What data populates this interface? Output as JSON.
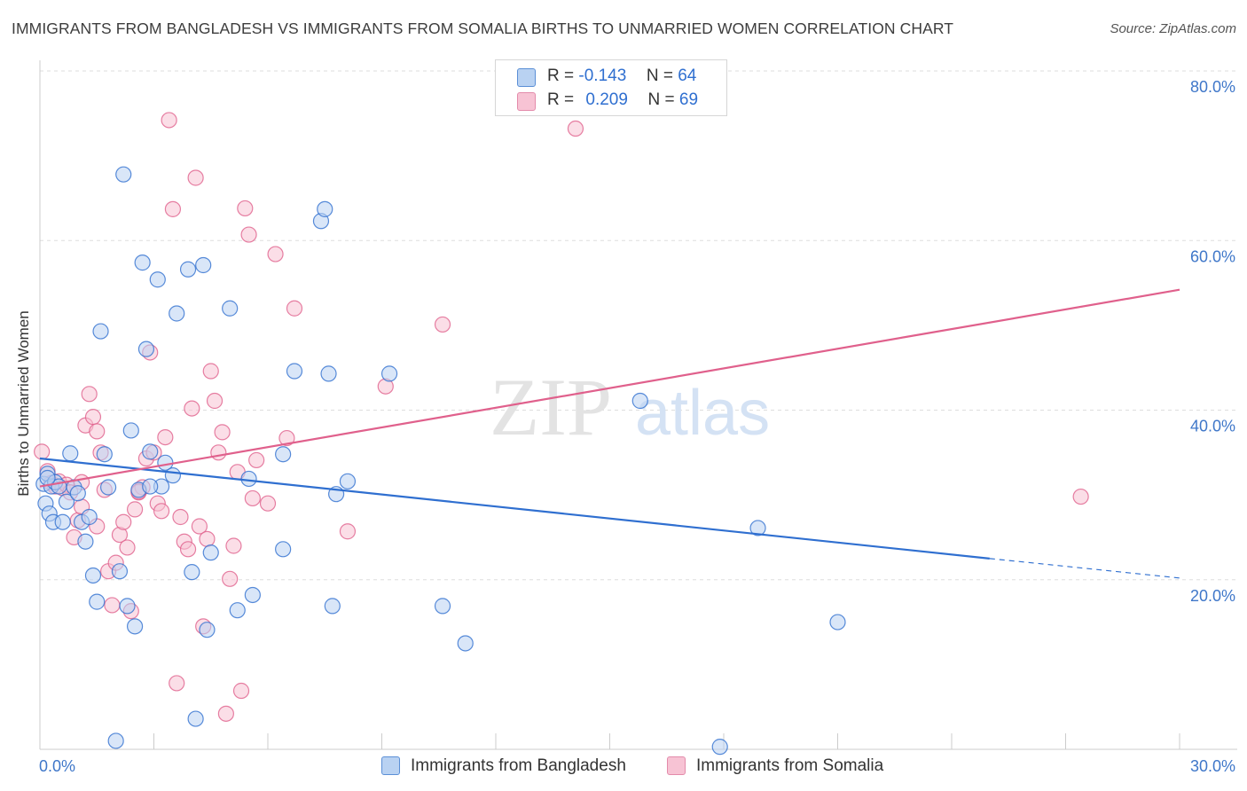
{
  "title": "IMMIGRANTS FROM BANGLADESH VS IMMIGRANTS FROM SOMALIA BIRTHS TO UNMARRIED WOMEN CORRELATION CHART",
  "source": "Source: ZipAtlas.com",
  "watermark": {
    "zip": "ZIP",
    "atlas": "atlas"
  },
  "colors": {
    "blue": "#2f6fd0",
    "pink": "#e0608c",
    "blue_fill": "#b9d2f2",
    "pink_fill": "#f7c3d4",
    "grid": "#dddddd",
    "axis_text": "#3f77c9"
  },
  "legend": {
    "rows": [
      {
        "r_label": "R =",
        "r_value": "-0.143",
        "n_label": "N =",
        "n_value": "64"
      },
      {
        "r_label": "R =",
        "r_value": "0.209",
        "n_label": "N =",
        "n_value": "69"
      }
    ]
  },
  "chart_data": {
    "type": "scatter",
    "title": "IMMIGRANTS FROM BANGLADESH VS IMMIGRANTS FROM SOMALIA BIRTHS TO UNMARRIED WOMEN CORRELATION CHART",
    "xlabel": "",
    "ylabel": "Births to Unmarried Women",
    "xlim": [
      0,
      30
    ],
    "ylim": [
      0,
      80
    ],
    "x_tick_labels": [
      "0.0%",
      "30.0%"
    ],
    "y_tick_labels": [
      "20.0%",
      "40.0%",
      "60.0%",
      "80.0%"
    ],
    "y_ticks": [
      20,
      40,
      60,
      80
    ],
    "series": [
      {
        "name": "Immigrants from Bangladesh",
        "color": "#2f6fd0",
        "r": -0.143,
        "n": 64,
        "trend": {
          "x_start": 0.0,
          "y_start": 34.3,
          "x_solid_end": 25.0,
          "y_solid_end": 22.5,
          "x_end": 30.0,
          "y_end": 20.2
        },
        "points": [
          [
            0.1,
            31.3
          ],
          [
            0.15,
            29.0
          ],
          [
            0.2,
            32.5
          ],
          [
            0.25,
            27.8
          ],
          [
            0.3,
            31.0
          ],
          [
            0.35,
            26.8
          ],
          [
            0.4,
            31.5
          ],
          [
            0.5,
            31.0
          ],
          [
            0.6,
            26.8
          ],
          [
            0.7,
            29.2
          ],
          [
            0.8,
            34.9
          ],
          [
            0.9,
            30.9
          ],
          [
            1.0,
            30.2
          ],
          [
            1.1,
            26.8
          ],
          [
            1.2,
            24.5
          ],
          [
            1.3,
            27.4
          ],
          [
            1.4,
            20.5
          ],
          [
            1.5,
            17.4
          ],
          [
            1.6,
            49.3
          ],
          [
            1.7,
            34.8
          ],
          [
            1.8,
            30.9
          ],
          [
            2.1,
            21.0
          ],
          [
            2.2,
            67.8
          ],
          [
            2.3,
            16.9
          ],
          [
            2.4,
            37.6
          ],
          [
            2.5,
            14.5
          ],
          [
            2.6,
            30.6
          ],
          [
            2.7,
            57.4
          ],
          [
            2.8,
            47.2
          ],
          [
            2.9,
            35.1
          ],
          [
            3.1,
            55.4
          ],
          [
            3.2,
            31.0
          ],
          [
            3.3,
            33.8
          ],
          [
            3.5,
            32.3
          ],
          [
            3.6,
            51.4
          ],
          [
            3.9,
            56.6
          ],
          [
            4.0,
            20.9
          ],
          [
            4.1,
            3.6
          ],
          [
            4.3,
            57.1
          ],
          [
            4.4,
            14.1
          ],
          [
            4.5,
            23.2
          ],
          [
            5.0,
            52.0
          ],
          [
            5.2,
            16.4
          ],
          [
            5.5,
            31.9
          ],
          [
            5.6,
            18.2
          ],
          [
            6.4,
            23.6
          ],
          [
            6.4,
            34.8
          ],
          [
            6.7,
            44.6
          ],
          [
            7.4,
            62.3
          ],
          [
            7.5,
            63.7
          ],
          [
            7.6,
            44.3
          ],
          [
            7.7,
            16.9
          ],
          [
            7.8,
            30.1
          ],
          [
            8.1,
            31.6
          ],
          [
            9.2,
            44.3
          ],
          [
            10.6,
            16.9
          ],
          [
            11.2,
            12.5
          ],
          [
            15.8,
            41.1
          ],
          [
            18.9,
            26.1
          ],
          [
            21.0,
            15.0
          ],
          [
            17.9,
            0.3
          ],
          [
            2.0,
            1.0
          ],
          [
            0.2,
            32.0
          ],
          [
            2.9,
            31.0
          ]
        ]
      },
      {
        "name": "Immigrants from Somalia",
        "color": "#e0608c",
        "r": 0.209,
        "n": 69,
        "trend": {
          "x_start": 0.0,
          "y_start": 31.0,
          "x_end": 30.0,
          "y_end": 54.2
        },
        "points": [
          [
            0.05,
            35.1
          ],
          [
            0.2,
            32.8
          ],
          [
            0.3,
            31.4
          ],
          [
            0.4,
            31.0
          ],
          [
            0.5,
            31.6
          ],
          [
            0.6,
            30.8
          ],
          [
            0.7,
            31.2
          ],
          [
            0.8,
            30.3
          ],
          [
            0.9,
            25.0
          ],
          [
            1.0,
            27.0
          ],
          [
            1.1,
            31.5
          ],
          [
            1.2,
            38.2
          ],
          [
            1.3,
            41.9
          ],
          [
            1.4,
            39.2
          ],
          [
            1.5,
            37.5
          ],
          [
            1.6,
            35.0
          ],
          [
            1.7,
            30.6
          ],
          [
            1.8,
            21.0
          ],
          [
            1.9,
            17.0
          ],
          [
            2.0,
            22.0
          ],
          [
            2.1,
            25.3
          ],
          [
            2.2,
            26.8
          ],
          [
            2.3,
            23.8
          ],
          [
            2.4,
            16.3
          ],
          [
            2.5,
            28.3
          ],
          [
            2.6,
            30.3
          ],
          [
            2.7,
            30.9
          ],
          [
            2.8,
            34.3
          ],
          [
            2.9,
            46.8
          ],
          [
            3.0,
            35.0
          ],
          [
            3.1,
            29.0
          ],
          [
            3.2,
            28.1
          ],
          [
            3.3,
            36.8
          ],
          [
            3.4,
            74.2
          ],
          [
            3.5,
            63.7
          ],
          [
            3.6,
            7.8
          ],
          [
            3.7,
            27.4
          ],
          [
            3.8,
            24.5
          ],
          [
            3.9,
            23.6
          ],
          [
            4.0,
            40.2
          ],
          [
            4.1,
            67.4
          ],
          [
            4.2,
            26.3
          ],
          [
            4.3,
            14.5
          ],
          [
            4.4,
            24.8
          ],
          [
            4.5,
            44.6
          ],
          [
            4.6,
            41.1
          ],
          [
            4.7,
            35.0
          ],
          [
            4.8,
            37.4
          ],
          [
            4.9,
            4.2
          ],
          [
            5.0,
            20.1
          ],
          [
            5.1,
            24.0
          ],
          [
            5.2,
            32.7
          ],
          [
            5.3,
            6.9
          ],
          [
            5.4,
            63.8
          ],
          [
            5.5,
            60.7
          ],
          [
            5.6,
            29.6
          ],
          [
            5.7,
            34.1
          ],
          [
            6.0,
            29.0
          ],
          [
            6.2,
            58.4
          ],
          [
            6.5,
            36.7
          ],
          [
            6.7,
            52.0
          ],
          [
            8.1,
            25.7
          ],
          [
            9.1,
            42.8
          ],
          [
            10.6,
            50.1
          ],
          [
            14.1,
            73.2
          ],
          [
            27.4,
            29.8
          ],
          [
            1.1,
            28.6
          ],
          [
            2.6,
            30.4
          ],
          [
            1.5,
            26.3
          ]
        ]
      }
    ]
  },
  "bottom_legend": {
    "items": [
      {
        "label": "Immigrants from Bangladesh"
      },
      {
        "label": "Immigrants from Somalia"
      }
    ]
  }
}
